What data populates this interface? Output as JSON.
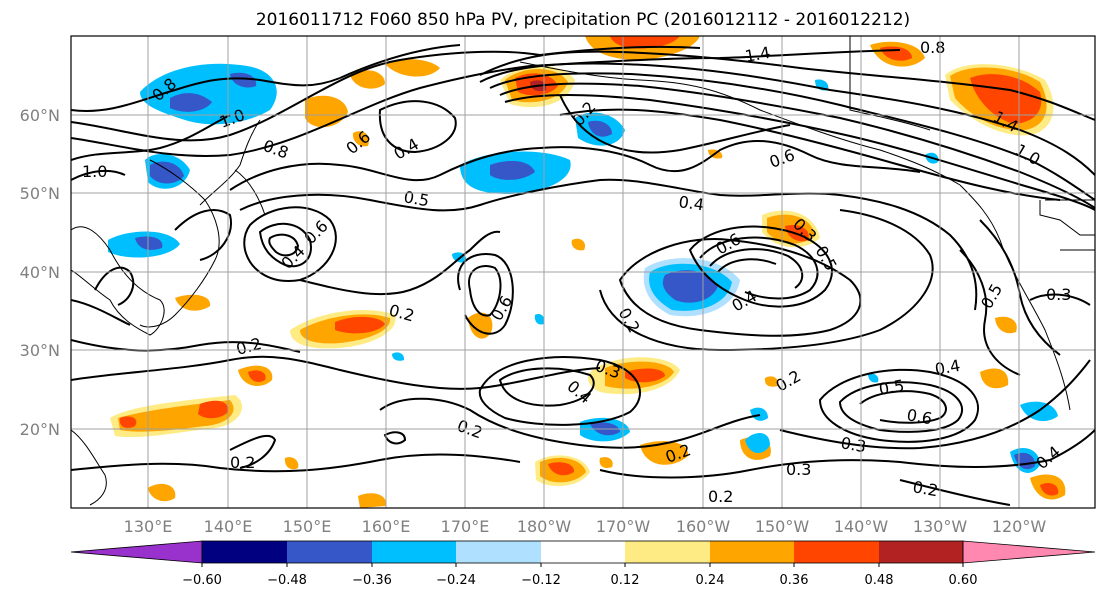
{
  "title": "2016011712 F060 850 hPa PV, precipitation PC (2016012112 - 2016012212)",
  "map": {
    "lat_labels": [
      "60°N",
      "50°N",
      "40°N",
      "30°N",
      "20°N"
    ],
    "lon_labels": [
      "130°E",
      "140°E",
      "150°E",
      "160°E",
      "170°E",
      "180°W",
      "170°W",
      "160°W",
      "150°W",
      "140°W",
      "130°W",
      "120°W"
    ],
    "contour_labels": [
      {
        "text": "0.8"
      },
      {
        "text": "1.0"
      },
      {
        "text": "0.8"
      },
      {
        "text": "0.6"
      },
      {
        "text": "0.4"
      },
      {
        "text": "1.0"
      },
      {
        "text": "0.5"
      },
      {
        "text": "0.6"
      },
      {
        "text": "0.4"
      },
      {
        "text": "0.2"
      },
      {
        "text": "0.2"
      },
      {
        "text": "0.6"
      },
      {
        "text": "0.2"
      },
      {
        "text": "0.6"
      },
      {
        "text": "0.4"
      },
      {
        "text": "0.3"
      },
      {
        "text": "0.5"
      },
      {
        "text": "1.4"
      },
      {
        "text": "0.8"
      },
      {
        "text": "1.4"
      },
      {
        "text": "1.0"
      },
      {
        "text": "0.6"
      },
      {
        "text": "0.4"
      },
      {
        "text": "0.3"
      },
      {
        "text": "0.2"
      },
      {
        "text": "0.4"
      },
      {
        "text": "0.2"
      },
      {
        "text": "0.2"
      },
      {
        "text": "0.2"
      },
      {
        "text": "0.3"
      },
      {
        "text": "0.2"
      },
      {
        "text": "0.5"
      },
      {
        "text": "0.4"
      },
      {
        "text": "0.6"
      },
      {
        "text": "0.3"
      },
      {
        "text": "0.2"
      },
      {
        "text": "0.4"
      },
      {
        "text": "0.2"
      },
      {
        "text": "0.3"
      },
      {
        "text": "0.5"
      }
    ]
  },
  "colorbar": {
    "colors": [
      "#9932cc",
      "#000080",
      "#3557c8",
      "#00bfff",
      "#b0e0ff",
      "#ffffff",
      "#ffeb84",
      "#ffa500",
      "#ff4500",
      "#b22222",
      "#ff88b0"
    ],
    "tick_labels": [
      "−0.60",
      "−0.48",
      "−0.36",
      "−0.24",
      "−0.12",
      "0.12",
      "0.24",
      "0.36",
      "0.48",
      "0.60"
    ]
  }
}
